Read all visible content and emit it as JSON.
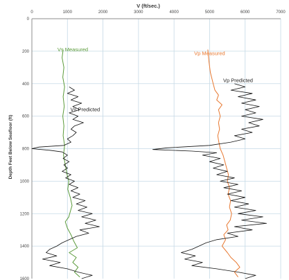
{
  "chart_data": {
    "type": "line",
    "title": "V (ft/sec.)",
    "xlabel": "",
    "ylabel": "Depth Feet Below Seafloor (ft)",
    "xlim": [
      0,
      7000
    ],
    "ylim": [
      0,
      1600
    ],
    "y_inverted": true,
    "x_axis_position": "top",
    "grid": true,
    "legend": "none (series labelled by annotations)",
    "x_ticks": [
      "0",
      "1000",
      "2000",
      "3000",
      "4000",
      "5000",
      "6000",
      "7000"
    ],
    "y_ticks": [
      "0",
      "200",
      "400",
      "600",
      "800",
      "1000",
      "1200",
      "1400",
      "1600"
    ],
    "colors": {
      "vs_measured": "#5a9a3a",
      "vp_measured": "#e87830",
      "predicted": "#111111",
      "grid": "#c5d9e6",
      "axis": "#8c8c8c"
    },
    "annotations": [
      {
        "text": "Vs Measured",
        "x": 1150,
        "y": 200,
        "color": "#5a9a3a"
      },
      {
        "text": "Vs Predicted",
        "x": 1500,
        "y": 570,
        "color": "#222222"
      },
      {
        "text": "Vp Measured",
        "x": 5000,
        "y": 225,
        "color": "#e87830"
      },
      {
        "text": "Vp Predicted",
        "x": 5800,
        "y": 390,
        "color": "#222222"
      }
    ],
    "series": [
      {
        "name": "Vs Measured",
        "points": [
          [
            880,
            190
          ],
          [
            850,
            240
          ],
          [
            900,
            300
          ],
          [
            870,
            360
          ],
          [
            920,
            420
          ],
          [
            880,
            480
          ],
          [
            910,
            540
          ],
          [
            870,
            600
          ],
          [
            900,
            660
          ],
          [
            880,
            720
          ],
          [
            920,
            780
          ],
          [
            890,
            840
          ],
          [
            940,
            900
          ],
          [
            990,
            960
          ],
          [
            1040,
            1000
          ],
          [
            1010,
            1050
          ],
          [
            1080,
            1100
          ],
          [
            1130,
            1150
          ],
          [
            1090,
            1180
          ],
          [
            1040,
            1220
          ],
          [
            940,
            1250
          ],
          [
            1000,
            1290
          ],
          [
            1100,
            1330
          ],
          [
            1180,
            1370
          ],
          [
            1280,
            1410
          ],
          [
            1050,
            1440
          ],
          [
            1250,
            1470
          ],
          [
            1150,
            1500
          ],
          [
            1300,
            1530
          ],
          [
            1200,
            1560
          ],
          [
            1350,
            1590
          ]
        ]
      },
      {
        "name": "Vs Predicted",
        "points": [
          [
            1050,
            420
          ],
          [
            1200,
            440
          ],
          [
            1000,
            460
          ],
          [
            1300,
            480
          ],
          [
            1100,
            500
          ],
          [
            1400,
            520
          ],
          [
            1150,
            540
          ],
          [
            1350,
            560
          ],
          [
            1050,
            580
          ],
          [
            1300,
            600
          ],
          [
            1150,
            620
          ],
          [
            1450,
            640
          ],
          [
            1200,
            660
          ],
          [
            1100,
            680
          ],
          [
            1250,
            700
          ],
          [
            1150,
            720
          ],
          [
            1000,
            740
          ],
          [
            1100,
            760
          ],
          [
            900,
            780
          ],
          [
            200,
            790
          ],
          [
            0,
            800
          ],
          [
            500,
            810
          ],
          [
            850,
            820
          ],
          [
            1000,
            840
          ],
          [
            880,
            860
          ],
          [
            1050,
            880
          ],
          [
            900,
            900
          ],
          [
            1000,
            920
          ],
          [
            850,
            940
          ],
          [
            1100,
            960
          ],
          [
            950,
            980
          ],
          [
            1200,
            1000
          ],
          [
            1050,
            1020
          ],
          [
            1300,
            1040
          ],
          [
            1100,
            1060
          ],
          [
            1350,
            1080
          ],
          [
            1150,
            1100
          ],
          [
            1500,
            1120
          ],
          [
            1250,
            1140
          ],
          [
            1550,
            1160
          ],
          [
            1300,
            1180
          ],
          [
            1700,
            1200
          ],
          [
            1400,
            1220
          ],
          [
            1800,
            1240
          ],
          [
            1500,
            1260
          ],
          [
            1900,
            1280
          ],
          [
            1350,
            1300
          ],
          [
            1600,
            1320
          ],
          [
            1250,
            1340
          ],
          [
            1050,
            1360
          ],
          [
            850,
            1380
          ],
          [
            700,
            1400
          ],
          [
            500,
            1420
          ],
          [
            400,
            1440
          ],
          [
            700,
            1460
          ],
          [
            300,
            1480
          ],
          [
            800,
            1500
          ],
          [
            500,
            1520
          ],
          [
            1000,
            1540
          ],
          [
            1300,
            1560
          ],
          [
            1700,
            1580
          ],
          [
            1400,
            1600
          ]
        ]
      },
      {
        "name": "Vp Measured",
        "points": [
          [
            4950,
            190
          ],
          [
            4980,
            260
          ],
          [
            5020,
            330
          ],
          [
            5100,
            400
          ],
          [
            5150,
            440
          ],
          [
            5250,
            470
          ],
          [
            5200,
            500
          ],
          [
            5350,
            530
          ],
          [
            5250,
            560
          ],
          [
            5300,
            600
          ],
          [
            5250,
            640
          ],
          [
            5280,
            680
          ],
          [
            5230,
            720
          ],
          [
            5260,
            760
          ],
          [
            5300,
            800
          ],
          [
            5380,
            840
          ],
          [
            5430,
            880
          ],
          [
            5480,
            920
          ],
          [
            5530,
            960
          ],
          [
            5500,
            1000
          ],
          [
            5560,
            1040
          ],
          [
            5520,
            1080
          ],
          [
            5590,
            1120
          ],
          [
            5560,
            1160
          ],
          [
            5620,
            1200
          ],
          [
            5580,
            1240
          ],
          [
            5480,
            1270
          ],
          [
            5520,
            1300
          ],
          [
            5400,
            1330
          ],
          [
            5450,
            1360
          ],
          [
            5350,
            1400
          ],
          [
            5500,
            1440
          ],
          [
            5600,
            1470
          ],
          [
            5750,
            1500
          ],
          [
            5850,
            1530
          ],
          [
            5700,
            1560
          ],
          [
            5800,
            1590
          ]
        ]
      },
      {
        "name": "Vp Predicted",
        "points": [
          [
            5700,
            400
          ],
          [
            6000,
            420
          ],
          [
            5600,
            440
          ],
          [
            6200,
            460
          ],
          [
            5800,
            480
          ],
          [
            6300,
            500
          ],
          [
            5900,
            520
          ],
          [
            6400,
            540
          ],
          [
            6000,
            560
          ],
          [
            6300,
            580
          ],
          [
            5900,
            600
          ],
          [
            6500,
            620
          ],
          [
            6100,
            640
          ],
          [
            6400,
            660
          ],
          [
            5900,
            680
          ],
          [
            6200,
            700
          ],
          [
            5700,
            720
          ],
          [
            6000,
            740
          ],
          [
            5600,
            760
          ],
          [
            5000,
            780
          ],
          [
            3800,
            795
          ],
          [
            3400,
            805
          ],
          [
            4500,
            815
          ],
          [
            5200,
            825
          ],
          [
            4800,
            840
          ],
          [
            5300,
            860
          ],
          [
            5000,
            880
          ],
          [
            5400,
            900
          ],
          [
            5100,
            920
          ],
          [
            5500,
            940
          ],
          [
            5200,
            960
          ],
          [
            5700,
            980
          ],
          [
            5300,
            1000
          ],
          [
            5800,
            1020
          ],
          [
            5400,
            1040
          ],
          [
            5900,
            1060
          ],
          [
            5500,
            1080
          ],
          [
            6000,
            1100
          ],
          [
            5600,
            1120
          ],
          [
            6100,
            1140
          ],
          [
            5700,
            1160
          ],
          [
            6300,
            1180
          ],
          [
            5800,
            1200
          ],
          [
            6500,
            1220
          ],
          [
            5900,
            1240
          ],
          [
            6600,
            1260
          ],
          [
            5700,
            1280
          ],
          [
            6200,
            1300
          ],
          [
            5500,
            1320
          ],
          [
            5800,
            1340
          ],
          [
            5200,
            1360
          ],
          [
            4900,
            1380
          ],
          [
            4700,
            1400
          ],
          [
            4500,
            1420
          ],
          [
            4200,
            1440
          ],
          [
            4600,
            1460
          ],
          [
            4300,
            1480
          ],
          [
            4800,
            1500
          ],
          [
            4500,
            1520
          ],
          [
            5200,
            1540
          ],
          [
            5800,
            1560
          ],
          [
            6300,
            1580
          ],
          [
            6000,
            1600
          ]
        ]
      }
    ]
  }
}
